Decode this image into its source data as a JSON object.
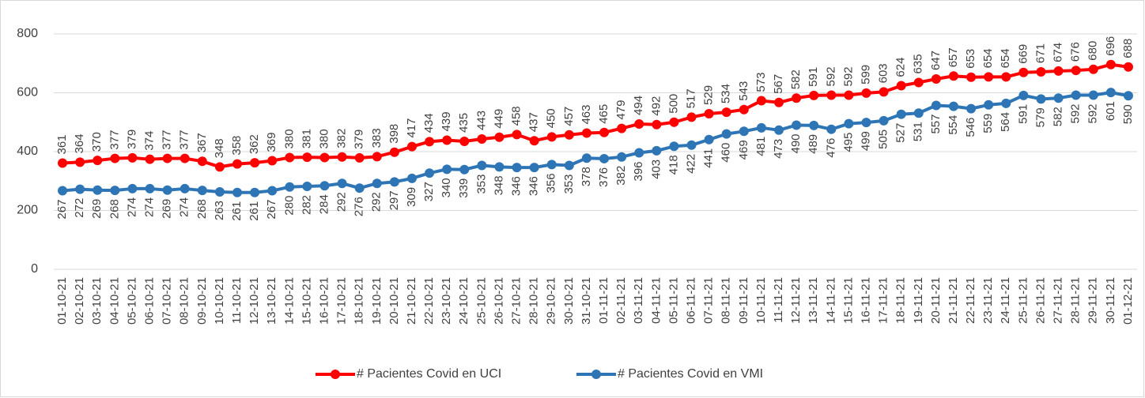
{
  "chart_data": {
    "type": "line",
    "categories": [
      "01-10-21",
      "02-10-21",
      "03-10-21",
      "04-10-21",
      "05-10-21",
      "06-10-21",
      "07-10-21",
      "08-10-21",
      "09-10-21",
      "10-10-21",
      "11-10-21",
      "12-10-21",
      "13-10-21",
      "14-10-21",
      "15-10-21",
      "16-10-21",
      "17-10-21",
      "18-10-21",
      "19-10-21",
      "20-10-21",
      "21-10-21",
      "22-10-21",
      "23-10-21",
      "24-10-21",
      "25-10-21",
      "26-10-21",
      "27-10-21",
      "28-10-21",
      "29-10-21",
      "30-10-21",
      "31-10-21",
      "01-11-21",
      "02-11-21",
      "03-11-21",
      "04-11-21",
      "05-11-21",
      "06-11-21",
      "07-11-21",
      "08-11-21",
      "09-11-21",
      "10-11-21",
      "11-11-21",
      "12-11-21",
      "13-11-21",
      "14-11-21",
      "15-11-21",
      "16-11-21",
      "17-11-21",
      "18-11-21",
      "19-11-21",
      "20-11-21",
      "21-11-21",
      "22-11-21",
      "23-11-21",
      "24-11-21",
      "25-11-21",
      "26-11-21",
      "27-11-21",
      "28-11-21",
      "29-11-21",
      "30-11-21",
      "01-12-21"
    ],
    "series": [
      {
        "name": "# Pacientes Covid en UCI",
        "color": "#ff0000",
        "values": [
          361,
          364,
          370,
          377,
          379,
          374,
          377,
          377,
          367,
          348,
          358,
          362,
          369,
          380,
          381,
          380,
          382,
          379,
          383,
          398,
          417,
          434,
          439,
          435,
          443,
          449,
          458,
          437,
          450,
          457,
          463,
          465,
          479,
          494,
          492,
          500,
          517,
          529,
          534,
          543,
          573,
          567,
          582,
          591,
          592,
          592,
          599,
          603,
          624,
          635,
          647,
          657,
          653,
          654,
          654,
          669,
          671,
          674,
          676,
          680,
          696,
          688
        ]
      },
      {
        "name": "# Pacientes Covid en VMI",
        "color": "#2e75b6",
        "values": [
          267,
          272,
          269,
          268,
          274,
          274,
          269,
          274,
          268,
          263,
          261,
          261,
          267,
          280,
          282,
          284,
          292,
          276,
          292,
          297,
          309,
          327,
          340,
          339,
          353,
          348,
          346,
          346,
          356,
          353,
          378,
          376,
          382,
          396,
          403,
          418,
          422,
          441,
          460,
          469,
          481,
          473,
          490,
          489,
          476,
          495,
          499,
          505,
          527,
          531,
          557,
          554,
          546,
          559,
          564,
          591,
          579,
          582,
          592,
          592,
          601,
          590
        ]
      }
    ],
    "ylim": [
      0,
      800
    ],
    "yticks": [
      0,
      200,
      400,
      600,
      800
    ],
    "grid": true,
    "legend": "bottom"
  }
}
